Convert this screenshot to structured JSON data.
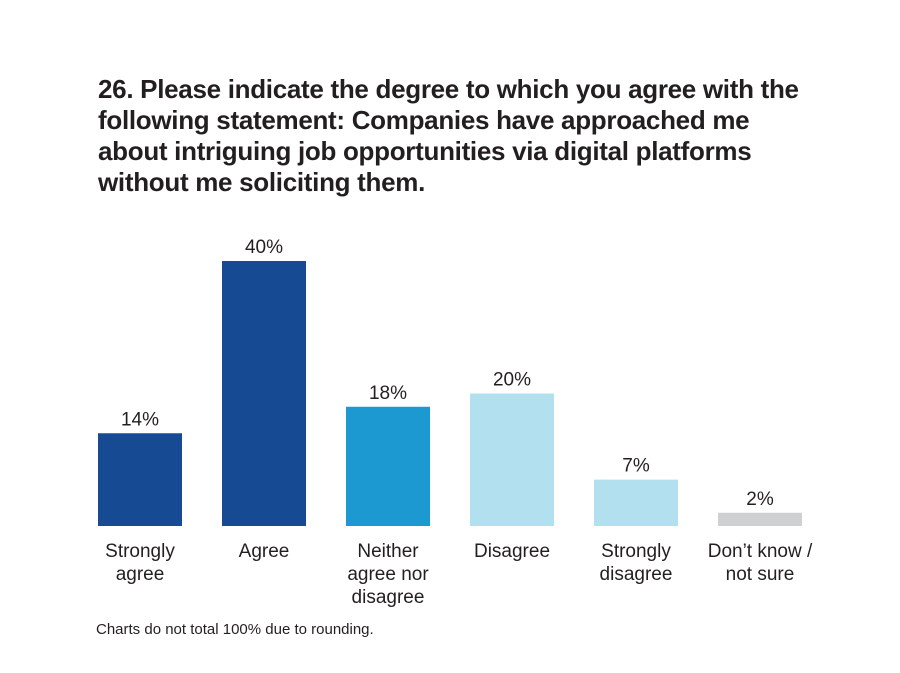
{
  "chart_data": {
    "type": "bar",
    "title": "26. Please indicate the degree to which you agree with the following statement: Companies have approached me about intriguing job opportunities via digital platforms without me soliciting them.",
    "categories": [
      [
        "Strongly",
        "agree"
      ],
      [
        "Agree"
      ],
      [
        "Neither",
        "agree nor",
        "disagree"
      ],
      [
        "Disagree"
      ],
      [
        "Strongly",
        "disagree"
      ],
      [
        "Don’t know /",
        "not sure"
      ]
    ],
    "values": [
      14,
      40,
      18,
      20,
      7,
      2
    ],
    "value_labels": [
      "14%",
      "40%",
      "18%",
      "20%",
      "7%",
      "2%"
    ],
    "colors": [
      "#164a93",
      "#164a93",
      "#1d99d2",
      "#b2e0ef",
      "#b2e0ef",
      "#cfd0d2"
    ],
    "unit": "%",
    "ylim": [
      0,
      40
    ],
    "grid": false,
    "legend": "none"
  },
  "footnote": "Charts do not total 100% due to rounding."
}
